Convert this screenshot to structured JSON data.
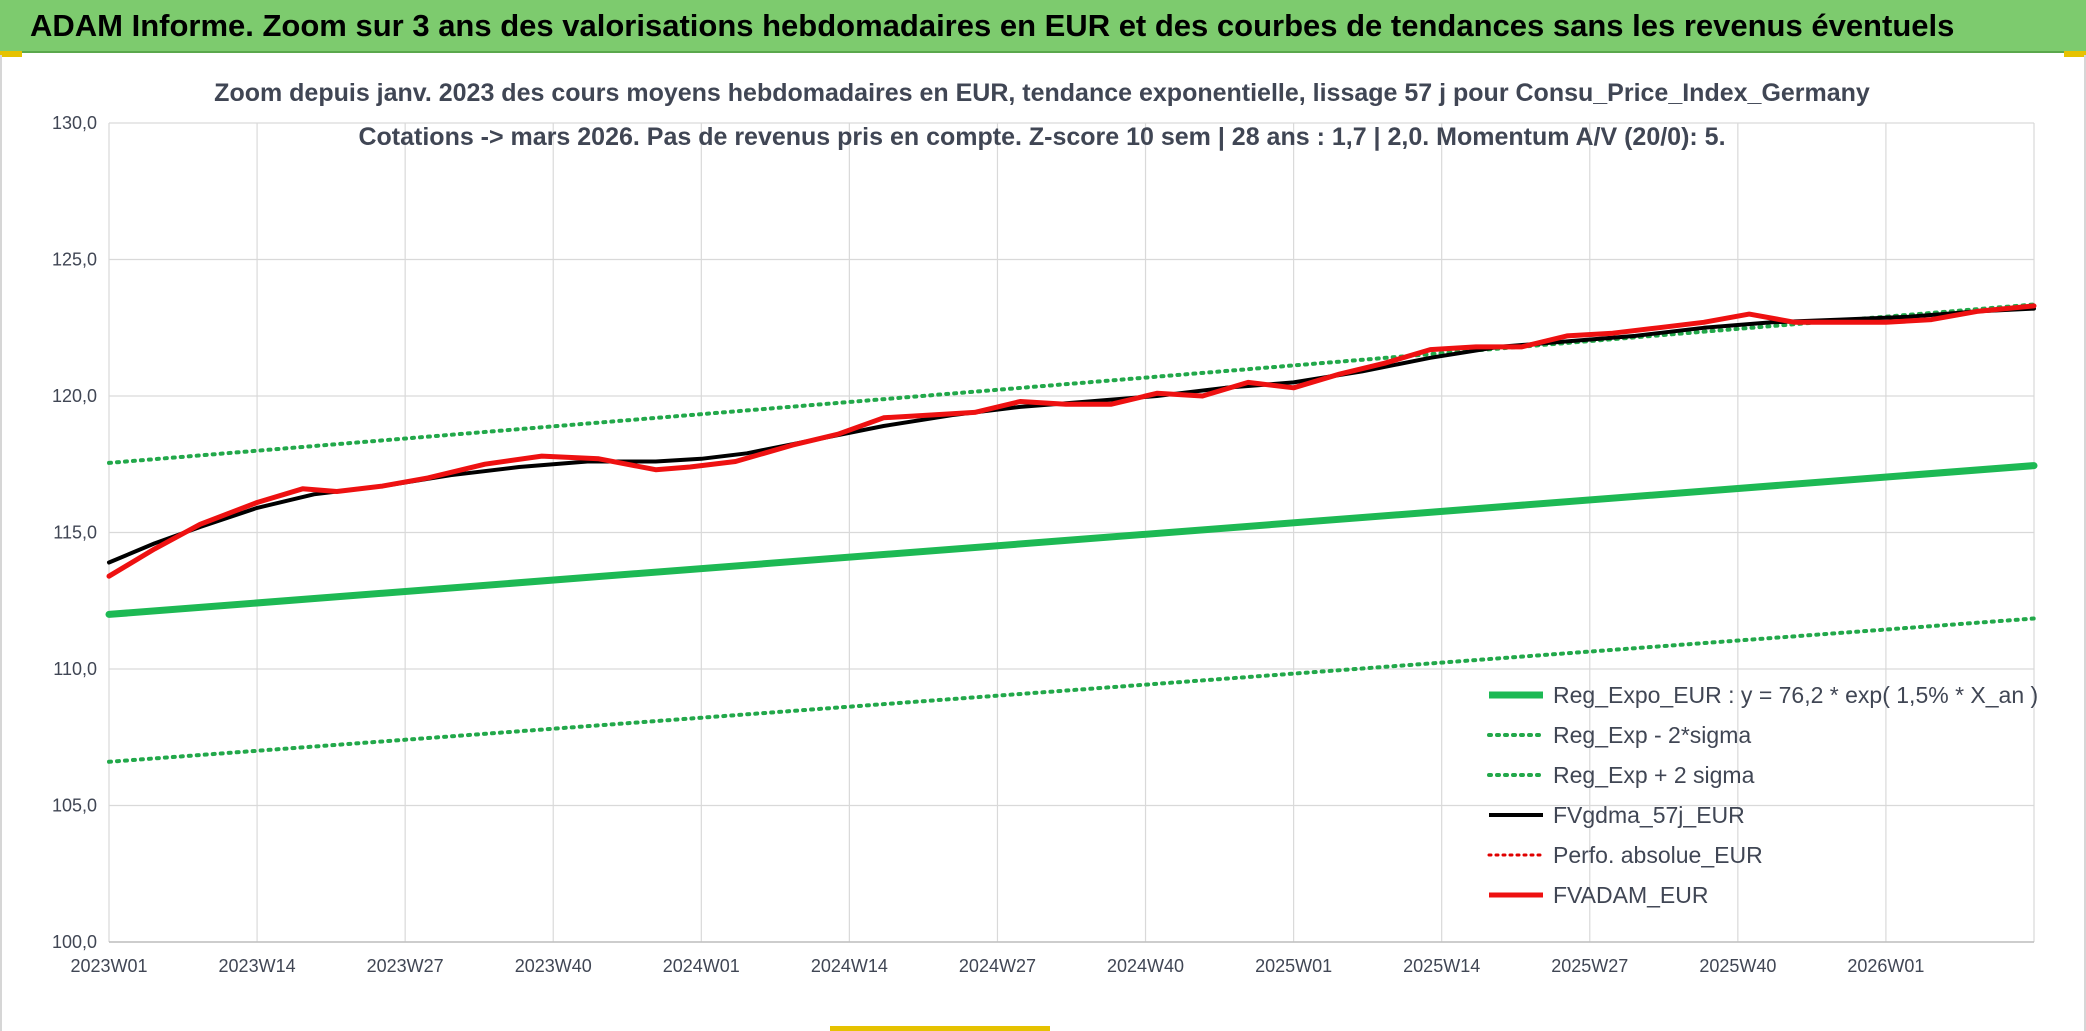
{
  "banner": {
    "title": "ADAM Informe. Zoom sur 3 ans des valorisations hebdomadaires en EUR et des courbes de tendances sans les revenus éventuels"
  },
  "colors": {
    "banner": "#7dcb6e",
    "reg_expo": "#1db954",
    "sigma": "#22a84a",
    "fvgdma": "#000000",
    "perfo": "#e00000",
    "fvadam": "#ee1111",
    "grid": "#d9d9d9"
  },
  "chart_data": {
    "type": "line",
    "title": "Zoom depuis janv. 2023 des cours moyens hebdomadaires en EUR, tendance exponentielle, lissage 57 j pour Consu_Price_Index_Germany",
    "subtitle": "Cotations -> mars 2026. Pas de revenus pris en compte. Z-score 10 sem | 28 ans : 1,7 | 2,0. Momentum A/V (20/0): 5.",
    "xlabel": "",
    "ylabel": "",
    "ylim": [
      100,
      130
    ],
    "yticks": [
      "130,0",
      "125,0",
      "120,0",
      "115,0",
      "110,0",
      "105,0",
      "100,0"
    ],
    "ytick_values": [
      130,
      125,
      120,
      115,
      110,
      105,
      100
    ],
    "xticks": [
      "2023W01",
      "2023W14",
      "2023W27",
      "2023W40",
      "2024W01",
      "2024W14",
      "2024W27",
      "2024W40",
      "2025W01",
      "2025W14",
      "2025W27",
      "2025W40",
      "2026W01"
    ],
    "x_range_weeks": [
      0,
      169
    ],
    "grid": true,
    "legend_position": "bottom-right",
    "series": [
      {
        "name": "Reg_Expo_EUR : y = 76,2 * exp( 1,5% *  X_an )",
        "key": "reg_expo",
        "style": "solid-thick",
        "x": [
          0,
          169
        ],
        "y": [
          112.0,
          117.45
        ]
      },
      {
        "name": "Reg_Exp - 2*sigma",
        "key": "sigma_low",
        "style": "dotted",
        "x": [
          0,
          169
        ],
        "y": [
          106.6,
          111.85
        ]
      },
      {
        "name": "Reg_Exp + 2 sigma",
        "key": "sigma_high",
        "style": "dotted",
        "x": [
          0,
          169
        ],
        "y": [
          117.55,
          123.35
        ]
      },
      {
        "name": "FVgdma_57j_EUR",
        "key": "fvgdma",
        "style": "solid",
        "x": [
          0,
          4,
          8,
          13,
          18,
          24,
          30,
          36,
          42,
          48,
          52,
          56,
          62,
          68,
          74,
          80,
          86,
          92,
          98,
          104,
          110,
          116,
          122,
          128,
          134,
          140,
          146,
          152,
          158,
          164,
          169
        ],
        "y": [
          113.9,
          114.6,
          115.2,
          115.9,
          116.4,
          116.7,
          117.1,
          117.4,
          117.6,
          117.6,
          117.7,
          117.9,
          118.4,
          118.9,
          119.3,
          119.6,
          119.8,
          120.0,
          120.3,
          120.5,
          120.9,
          121.4,
          121.8,
          122.0,
          122.2,
          122.5,
          122.7,
          122.8,
          122.9,
          123.1,
          123.2
        ]
      },
      {
        "name": "Perfo. absolue_EUR",
        "key": "perfo",
        "style": "dotted-red",
        "x": [],
        "y": []
      },
      {
        "name": "FVADAM_EUR",
        "key": "fvadam",
        "style": "solid-thick",
        "x": [
          0,
          4,
          8,
          13,
          17,
          20,
          24,
          28,
          33,
          38,
          43,
          48,
          51,
          55,
          60,
          64,
          68,
          72,
          76,
          80,
          84,
          88,
          92,
          96,
          100,
          104,
          108,
          112,
          116,
          120,
          124,
          128,
          132,
          136,
          140,
          144,
          148,
          152,
          156,
          160,
          164,
          169
        ],
        "y": [
          113.4,
          114.4,
          115.3,
          116.1,
          116.6,
          116.5,
          116.7,
          117.0,
          117.5,
          117.8,
          117.7,
          117.3,
          117.4,
          117.6,
          118.2,
          118.6,
          119.2,
          119.3,
          119.4,
          119.8,
          119.7,
          119.7,
          120.1,
          120.0,
          120.5,
          120.3,
          120.8,
          121.2,
          121.7,
          121.8,
          121.8,
          122.2,
          122.3,
          122.5,
          122.7,
          123.0,
          122.7,
          122.7,
          122.7,
          122.8,
          123.1,
          123.3
        ]
      }
    ]
  }
}
